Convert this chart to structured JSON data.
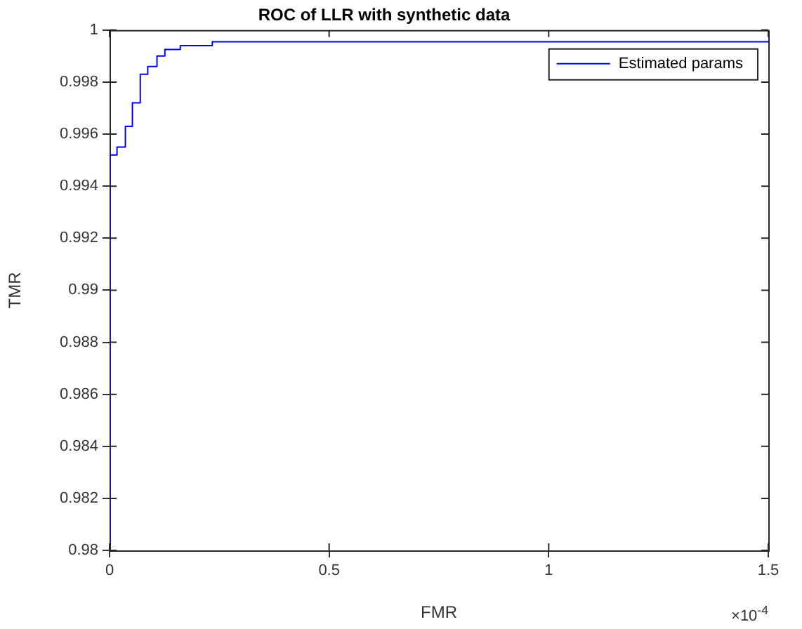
{
  "chart_data": {
    "type": "step",
    "title": "ROC of LLR with synthetic data",
    "xlabel": "FMR",
    "ylabel": "TMR",
    "series": [
      {
        "name": "Estimated params",
        "color": "#0000ff",
        "x": [
          0,
          0,
          0.017,
          0.036,
          0.052,
          0.07,
          0.087,
          0.108,
          0.126,
          0.161,
          0.234,
          0.806,
          1.5
        ],
        "values": [
          0.98,
          0.9936,
          0.9952,
          0.9955,
          0.9963,
          0.9972,
          0.9983,
          0.9986,
          0.999,
          0.99925,
          0.9994,
          0.99955,
          0.99955
        ]
      }
    ],
    "xlim": [
      0,
      1.5
    ],
    "xticks": [
      0,
      0.5,
      1,
      1.5
    ],
    "ylim": [
      0.98,
      1
    ],
    "yticks": [
      0.98,
      0.982,
      0.984,
      0.986,
      0.988,
      0.99,
      0.992,
      0.994,
      0.996,
      0.998,
      1
    ],
    "annotations": [
      "×10$^{-4}$"
    ],
    "legend": "top right",
    "grid": false
  }
}
